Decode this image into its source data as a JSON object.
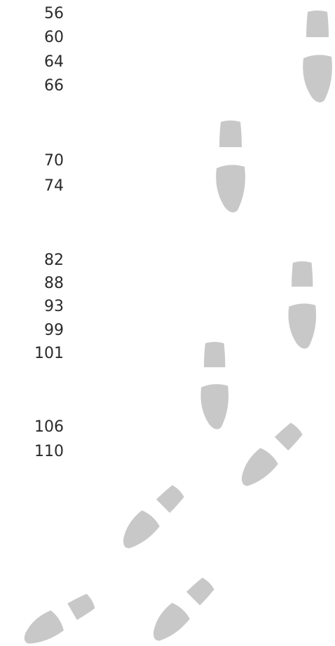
{
  "numbers": [
    "56",
    "60",
    "64",
    "66",
    "70",
    "74",
    "82",
    "88",
    "93",
    "99",
    "101",
    "106",
    "110"
  ]
}
